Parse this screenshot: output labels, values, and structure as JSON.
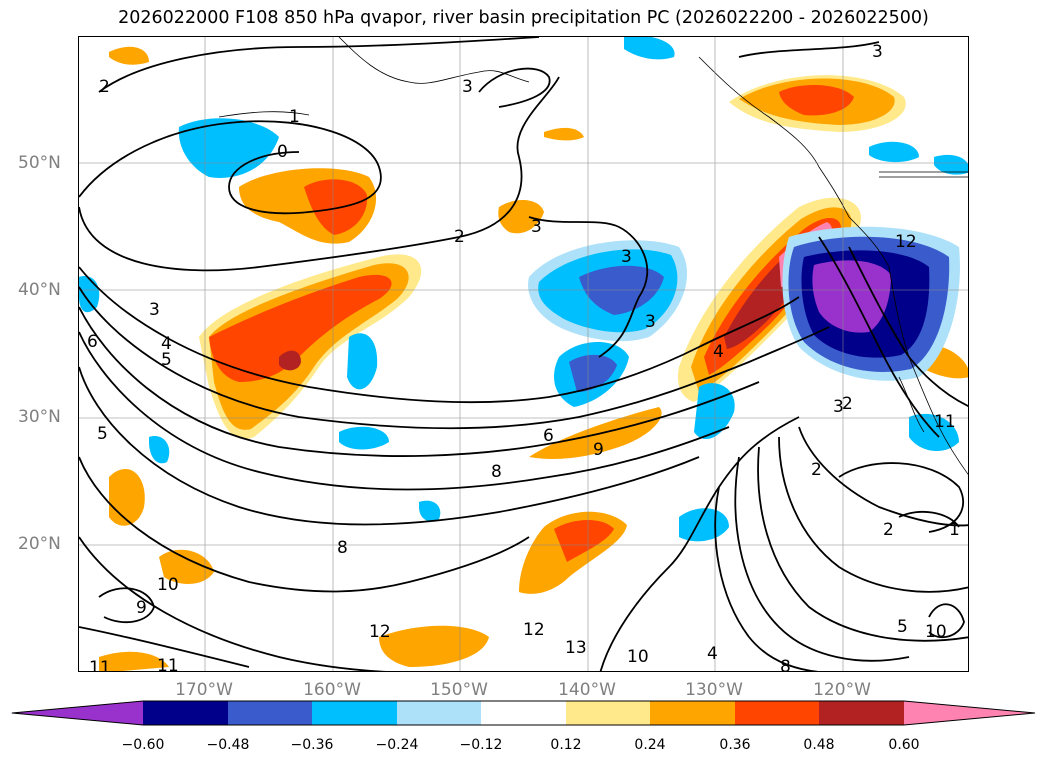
{
  "title": "2026022000 F108 850 hPa qvapor, river basin precipitation PC (2026022200 - 2026022500)",
  "map": {
    "lat_ticks": [
      "50°N",
      "40°N",
      "30°N",
      "20°N"
    ],
    "lon_ticks": [
      "170°W",
      "160°W",
      "150°W",
      "140°W",
      "130°W",
      "120°W"
    ],
    "contour_labels": [
      "2",
      "3",
      "0",
      "1",
      "2",
      "3",
      "3",
      "3",
      "3",
      "4",
      "5",
      "6",
      "5",
      "6",
      "9",
      "8",
      "8",
      "9",
      "10",
      "12",
      "11",
      "12",
      "13",
      "10",
      "8",
      "4",
      "3",
      "2",
      "2",
      "11",
      "10",
      "5",
      "4",
      "2",
      "1",
      "3",
      "12",
      "11"
    ]
  },
  "colorbar": {
    "ticks": [
      "−0.60",
      "−0.48",
      "−0.36",
      "−0.24",
      "−0.12",
      "0.12",
      "0.24",
      "0.36",
      "0.48",
      "0.60"
    ],
    "colors": [
      "#9932CC",
      "#00008B",
      "#3A5BCB",
      "#00BFFF",
      "#ADE1FA",
      "#FFFFFF",
      "#FFE98A",
      "#FFA500",
      "#FF4500",
      "#B22222",
      "#FF83B0"
    ]
  }
}
